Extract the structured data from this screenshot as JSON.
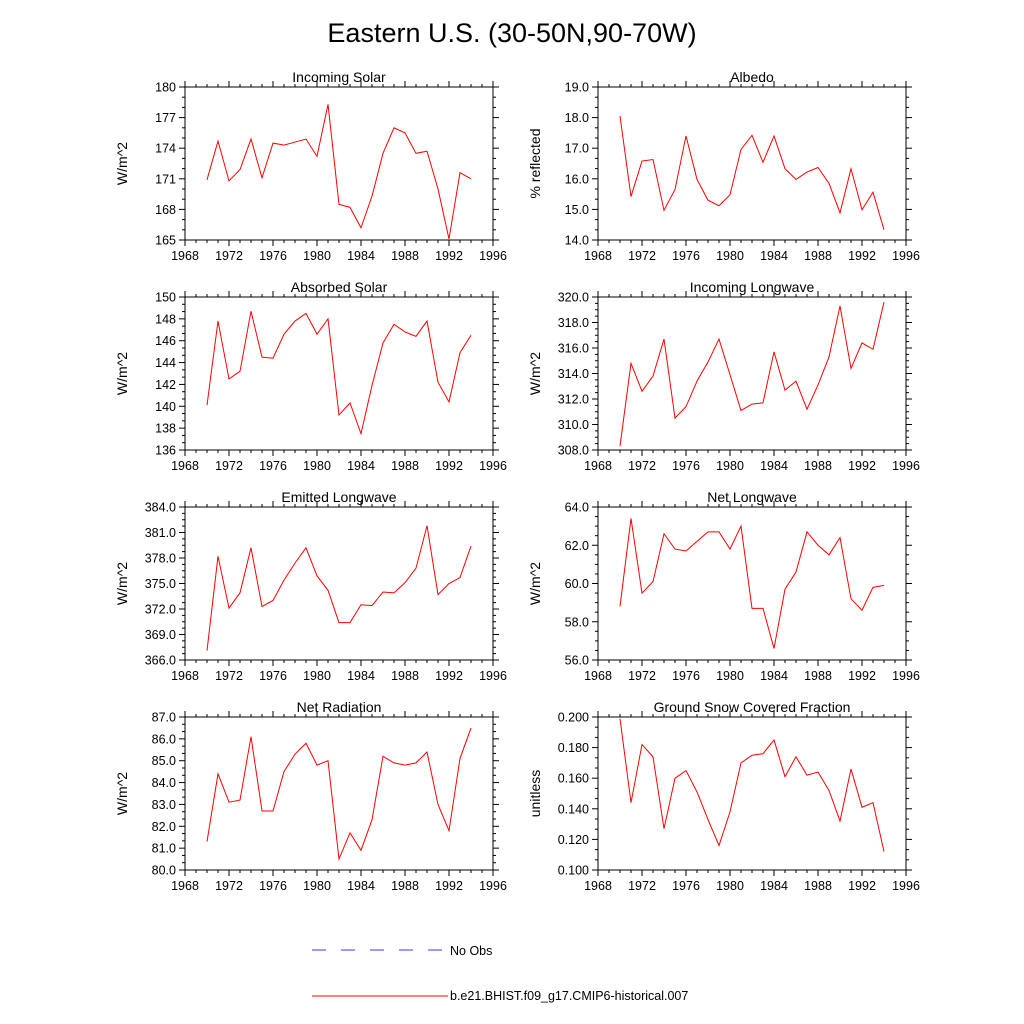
{
  "title": "Eastern U.S. (30-50N,90-70W)",
  "legend": {
    "entries": [
      {
        "label": "No Obs",
        "style": "dashed",
        "color": "#3a3aff"
      },
      {
        "label": "b.e21.BHIST.f09_g17.CMIP6-historical.007",
        "style": "solid",
        "color": "#ff0000"
      }
    ]
  },
  "chart_data": [
    {
      "type": "line",
      "title": "Incoming Solar",
      "ylabel": "W/m^2",
      "xlim": [
        1968,
        1996
      ],
      "xticks": [
        "1968",
        "1972",
        "1976",
        "1980",
        "1984",
        "1988",
        "1992",
        "1996"
      ],
      "ylim": [
        165,
        180
      ],
      "yticks": [
        "165",
        "168",
        "171",
        "174",
        "177",
        "180"
      ],
      "x": [
        1970,
        1971,
        1972,
        1973,
        1974,
        1975,
        1976,
        1977,
        1978,
        1979,
        1980,
        1981,
        1982,
        1983,
        1984,
        1985,
        1986,
        1987,
        1988,
        1989,
        1990,
        1991,
        1992,
        1993,
        1994
      ],
      "series": [
        {
          "name": "b.e21.BHIST.f09_g17.CMIP6-historical.007",
          "color": "#ff0000",
          "values": [
            170.9,
            174.7,
            170.8,
            171.9,
            174.9,
            171.1,
            174.5,
            174.3,
            174.6,
            174.9,
            173.2,
            178.3,
            168.5,
            168.2,
            166.2,
            169.3,
            173.5,
            176.0,
            175.5,
            173.5,
            173.7,
            170.0,
            165.1,
            171.6,
            171.0
          ]
        }
      ]
    },
    {
      "type": "line",
      "title": "Albedo",
      "ylabel": "% reflected",
      "xlim": [
        1968,
        1996
      ],
      "xticks": [
        "1968",
        "1972",
        "1976",
        "1980",
        "1984",
        "1988",
        "1992",
        "1996"
      ],
      "ylim": [
        14.0,
        19.0
      ],
      "yticks": [
        "14.0",
        "15.0",
        "16.0",
        "17.0",
        "18.0",
        "19.0"
      ],
      "x": [
        1970,
        1971,
        1972,
        1973,
        1974,
        1975,
        1976,
        1977,
        1978,
        1979,
        1980,
        1981,
        1982,
        1983,
        1984,
        1985,
        1986,
        1987,
        1988,
        1989,
        1990,
        1991,
        1992,
        1993,
        1994
      ],
      "series": [
        {
          "name": "b.e21.BHIST.f09_g17.CMIP6-historical.007",
          "color": "#ff0000",
          "values": [
            18.05,
            15.42,
            16.58,
            16.63,
            14.97,
            15.65,
            17.4,
            15.98,
            15.3,
            15.12,
            15.48,
            16.96,
            17.42,
            16.54,
            17.4,
            16.33,
            15.98,
            16.22,
            16.37,
            15.85,
            14.89,
            16.33,
            14.99,
            15.56,
            14.33
          ]
        }
      ]
    },
    {
      "type": "line",
      "title": "Absorbed Solar",
      "ylabel": "W/m^2",
      "xlim": [
        1968,
        1996
      ],
      "xticks": [
        "1968",
        "1972",
        "1976",
        "1980",
        "1984",
        "1988",
        "1992",
        "1996"
      ],
      "ylim": [
        136,
        150
      ],
      "yticks": [
        "136",
        "138",
        "140",
        "142",
        "144",
        "146",
        "148",
        "150"
      ],
      "x": [
        1970,
        1971,
        1972,
        1973,
        1974,
        1975,
        1976,
        1977,
        1978,
        1979,
        1980,
        1981,
        1982,
        1983,
        1984,
        1985,
        1986,
        1987,
        1988,
        1989,
        1990,
        1991,
        1992,
        1993,
        1994
      ],
      "series": [
        {
          "name": "b.e21.BHIST.f09_g17.CMIP6-historical.007",
          "color": "#ff0000",
          "values": [
            140.1,
            147.8,
            142.5,
            143.2,
            148.7,
            144.5,
            144.4,
            146.6,
            147.8,
            148.5,
            146.6,
            148.0,
            139.2,
            140.3,
            137.5,
            141.9,
            145.8,
            147.5,
            146.8,
            146.4,
            147.8,
            142.2,
            140.4,
            144.9,
            146.5
          ]
        }
      ]
    },
    {
      "type": "line",
      "title": "Incoming Longwave",
      "ylabel": "W/m^2",
      "xlim": [
        1968,
        1996
      ],
      "xticks": [
        "1968",
        "1972",
        "1976",
        "1980",
        "1984",
        "1988",
        "1992",
        "1996"
      ],
      "ylim": [
        308.0,
        320.0
      ],
      "yticks": [
        "308.0",
        "310.0",
        "312.0",
        "314.0",
        "316.0",
        "318.0",
        "320.0"
      ],
      "x": [
        1970,
        1971,
        1972,
        1973,
        1974,
        1975,
        1976,
        1977,
        1978,
        1979,
        1980,
        1981,
        1982,
        1983,
        1984,
        1985,
        1986,
        1987,
        1988,
        1989,
        1990,
        1991,
        1992,
        1993,
        1994
      ],
      "series": [
        {
          "name": "b.e21.BHIST.f09_g17.CMIP6-historical.007",
          "color": "#ff0000",
          "values": [
            308.3,
            314.8,
            312.6,
            313.8,
            316.7,
            310.5,
            311.4,
            313.4,
            314.9,
            316.7,
            313.9,
            311.1,
            311.6,
            311.7,
            315.7,
            312.7,
            313.4,
            311.2,
            313.1,
            315.3,
            319.3,
            314.4,
            316.4,
            315.9,
            319.6
          ]
        }
      ]
    },
    {
      "type": "line",
      "title": "Emitted Longwave",
      "ylabel": "W/m^2",
      "xlim": [
        1968,
        1996
      ],
      "xticks": [
        "1968",
        "1972",
        "1976",
        "1980",
        "1984",
        "1988",
        "1992",
        "1996"
      ],
      "ylim": [
        366.0,
        384.0
      ],
      "yticks": [
        "366.0",
        "369.0",
        "372.0",
        "375.0",
        "378.0",
        "381.0",
        "384.0"
      ],
      "x": [
        1970,
        1971,
        1972,
        1973,
        1974,
        1975,
        1976,
        1977,
        1978,
        1979,
        1980,
        1981,
        1982,
        1983,
        1984,
        1985,
        1986,
        1987,
        1988,
        1989,
        1990,
        1991,
        1992,
        1993,
        1994
      ],
      "series": [
        {
          "name": "b.e21.BHIST.f09_g17.CMIP6-historical.007",
          "color": "#ff0000",
          "values": [
            367.1,
            378.2,
            372.1,
            373.9,
            379.2,
            372.3,
            373.0,
            375.4,
            377.4,
            379.2,
            375.9,
            374.2,
            370.4,
            370.4,
            372.5,
            372.4,
            374.0,
            373.9,
            375.1,
            376.8,
            381.8,
            373.7,
            375.0,
            375.7,
            379.4
          ]
        }
      ]
    },
    {
      "type": "line",
      "title": "Net Longwave",
      "ylabel": "W/m^2",
      "xlim": [
        1968,
        1996
      ],
      "xticks": [
        "1968",
        "1972",
        "1976",
        "1980",
        "1984",
        "1988",
        "1992",
        "1996"
      ],
      "ylim": [
        56.0,
        64.0
      ],
      "yticks": [
        "56.0",
        "58.0",
        "60.0",
        "62.0",
        "64.0"
      ],
      "x": [
        1970,
        1971,
        1972,
        1973,
        1974,
        1975,
        1976,
        1977,
        1978,
        1979,
        1980,
        1981,
        1982,
        1983,
        1984,
        1985,
        1986,
        1987,
        1988,
        1989,
        1990,
        1991,
        1992,
        1993,
        1994
      ],
      "series": [
        {
          "name": "b.e21.BHIST.f09_g17.CMIP6-historical.007",
          "color": "#ff0000",
          "values": [
            58.8,
            63.4,
            59.5,
            60.1,
            62.6,
            61.8,
            61.7,
            62.2,
            62.7,
            62.7,
            61.8,
            63.0,
            58.7,
            58.7,
            56.6,
            59.7,
            60.6,
            62.7,
            62.0,
            61.5,
            62.4,
            59.2,
            58.6,
            59.8,
            59.9
          ]
        }
      ]
    },
    {
      "type": "line",
      "title": "Net Radiation",
      "ylabel": "W/m^2",
      "xlim": [
        1968,
        1996
      ],
      "xticks": [
        "1968",
        "1972",
        "1976",
        "1980",
        "1984",
        "1988",
        "1992",
        "1996"
      ],
      "ylim": [
        80.0,
        87.0
      ],
      "yticks": [
        "80.0",
        "81.0",
        "82.0",
        "83.0",
        "84.0",
        "85.0",
        "86.0",
        "87.0"
      ],
      "x": [
        1970,
        1971,
        1972,
        1973,
        1974,
        1975,
        1976,
        1977,
        1978,
        1979,
        1980,
        1981,
        1982,
        1983,
        1984,
        1985,
        1986,
        1987,
        1988,
        1989,
        1990,
        1991,
        1992,
        1993,
        1994
      ],
      "series": [
        {
          "name": "b.e21.BHIST.f09_g17.CMIP6-historical.007",
          "color": "#ff0000",
          "values": [
            81.3,
            84.4,
            83.1,
            83.2,
            86.1,
            82.7,
            82.7,
            84.5,
            85.3,
            85.8,
            84.8,
            85.0,
            80.5,
            81.7,
            80.9,
            82.3,
            85.2,
            84.9,
            84.8,
            84.9,
            85.4,
            83.0,
            81.8,
            85.1,
            86.5
          ]
        }
      ]
    },
    {
      "type": "line",
      "title": "Ground Snow Covered Fraction",
      "ylabel": "unitless",
      "xlim": [
        1968,
        1996
      ],
      "xticks": [
        "1968",
        "1972",
        "1976",
        "1980",
        "1984",
        "1988",
        "1992",
        "1996"
      ],
      "ylim": [
        0.1,
        0.2
      ],
      "yticks": [
        "0.100",
        "0.120",
        "0.140",
        "0.160",
        "0.180",
        "0.200"
      ],
      "x": [
        1970,
        1971,
        1972,
        1973,
        1974,
        1975,
        1976,
        1977,
        1978,
        1979,
        1980,
        1981,
        1982,
        1983,
        1984,
        1985,
        1986,
        1987,
        1988,
        1989,
        1990,
        1991,
        1992,
        1993,
        1994
      ],
      "series": [
        {
          "name": "b.e21.BHIST.f09_g17.CMIP6-historical.007",
          "color": "#ff0000",
          "values": [
            0.199,
            0.144,
            0.182,
            0.174,
            0.127,
            0.16,
            0.165,
            0.151,
            0.133,
            0.116,
            0.138,
            0.17,
            0.175,
            0.176,
            0.185,
            0.161,
            0.174,
            0.162,
            0.164,
            0.152,
            0.132,
            0.166,
            0.141,
            0.144,
            0.112
          ]
        }
      ]
    }
  ]
}
